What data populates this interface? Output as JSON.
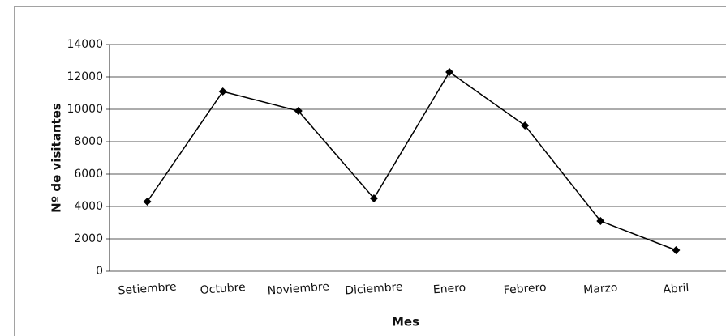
{
  "chart_data": {
    "type": "line",
    "x_label": "Mes",
    "y_label": "Nº de visitantes",
    "categories": [
      "Setiembre",
      "Octubre",
      "Noviembre",
      "Diciembre",
      "Enero",
      "Febrero",
      "Marzo",
      "Abril"
    ],
    "series": [
      {
        "name": "Visitantes",
        "color": "#000000",
        "values": [
          4300,
          11100,
          9900,
          4500,
          12300,
          9000,
          3100,
          1300
        ]
      }
    ],
    "ylim": [
      0,
      14000
    ],
    "yticks": [
      0,
      2000,
      4000,
      6000,
      8000,
      10000,
      12000,
      14000
    ],
    "grid": true
  }
}
